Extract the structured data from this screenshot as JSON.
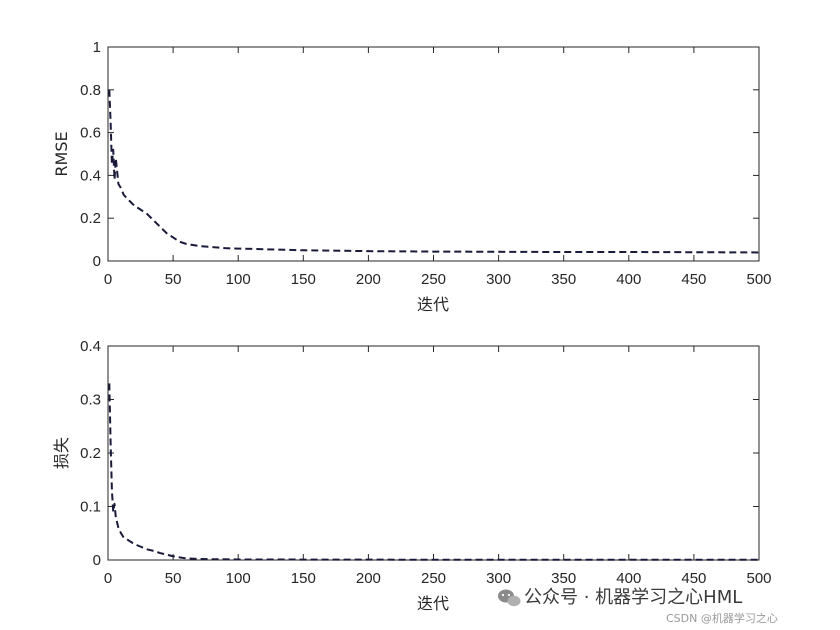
{
  "chart_data": [
    {
      "type": "line",
      "title": "",
      "xlabel": "迭代",
      "ylabel": "RMSE",
      "xlim": [
        0,
        500
      ],
      "ylim": [
        0,
        1
      ],
      "xticks": [
        0,
        50,
        100,
        150,
        200,
        250,
        300,
        350,
        400,
        450,
        500
      ],
      "yticks": [
        0,
        0.2,
        0.4,
        0.6,
        0.8,
        1
      ],
      "xtick_labels": [
        "0",
        "50",
        "100",
        "150",
        "200",
        "250",
        "300",
        "350",
        "400",
        "450",
        "500"
      ],
      "ytick_labels": [
        "0",
        "0.2",
        "0.4",
        "0.6",
        "0.8",
        "1"
      ],
      "grid": false,
      "line_style": "dashed",
      "line_color": "#1a1a3a",
      "series": [
        {
          "x": [
            1,
            2,
            3,
            4,
            5,
            6,
            7,
            8,
            10,
            12,
            15,
            20,
            25,
            30,
            35,
            40,
            45,
            50,
            55,
            60,
            70,
            80,
            90,
            100,
            120,
            150,
            180,
            200,
            250,
            300,
            350,
            400,
            450,
            500
          ],
          "y": [
            0.8,
            0.65,
            0.45,
            0.52,
            0.38,
            0.48,
            0.42,
            0.36,
            0.34,
            0.31,
            0.29,
            0.26,
            0.24,
            0.22,
            0.19,
            0.16,
            0.13,
            0.11,
            0.09,
            0.08,
            0.07,
            0.065,
            0.06,
            0.058,
            0.055,
            0.05,
            0.048,
            0.046,
            0.044,
            0.043,
            0.042,
            0.042,
            0.041,
            0.04
          ]
        }
      ]
    },
    {
      "type": "line",
      "title": "",
      "xlabel": "迭代",
      "ylabel": "损失",
      "xlim": [
        0,
        500
      ],
      "ylim": [
        0,
        0.4
      ],
      "xticks": [
        0,
        50,
        100,
        150,
        200,
        250,
        300,
        350,
        400,
        450,
        500
      ],
      "yticks": [
        0,
        0.1,
        0.2,
        0.3,
        0.4
      ],
      "xtick_labels": [
        "0",
        "50",
        "100",
        "150",
        "200",
        "250",
        "300",
        "350",
        "400",
        "450",
        "500"
      ],
      "ytick_labels": [
        "0",
        "0.1",
        "0.2",
        "0.3",
        "0.4"
      ],
      "grid": false,
      "line_style": "dashed",
      "line_color": "#1a1a3a",
      "series": [
        {
          "x": [
            1,
            2,
            3,
            4,
            5,
            6,
            7,
            8,
            10,
            12,
            15,
            20,
            25,
            30,
            35,
            40,
            45,
            50,
            55,
            60,
            70,
            80,
            100,
            150,
            200,
            300,
            400,
            500
          ],
          "y": [
            0.33,
            0.22,
            0.13,
            0.09,
            0.105,
            0.08,
            0.07,
            0.06,
            0.05,
            0.042,
            0.038,
            0.03,
            0.025,
            0.02,
            0.017,
            0.013,
            0.01,
            0.007,
            0.005,
            0.003,
            0.002,
            0.0015,
            0.001,
            0.0008,
            0.0006,
            0.0005,
            0.0005,
            0.0005
          ]
        }
      ]
    }
  ],
  "watermark": {
    "text": "公众号 · 机器学习之心HML",
    "sub_text": "CSDN @机器学习之心",
    "icon": "wechat-icon"
  }
}
